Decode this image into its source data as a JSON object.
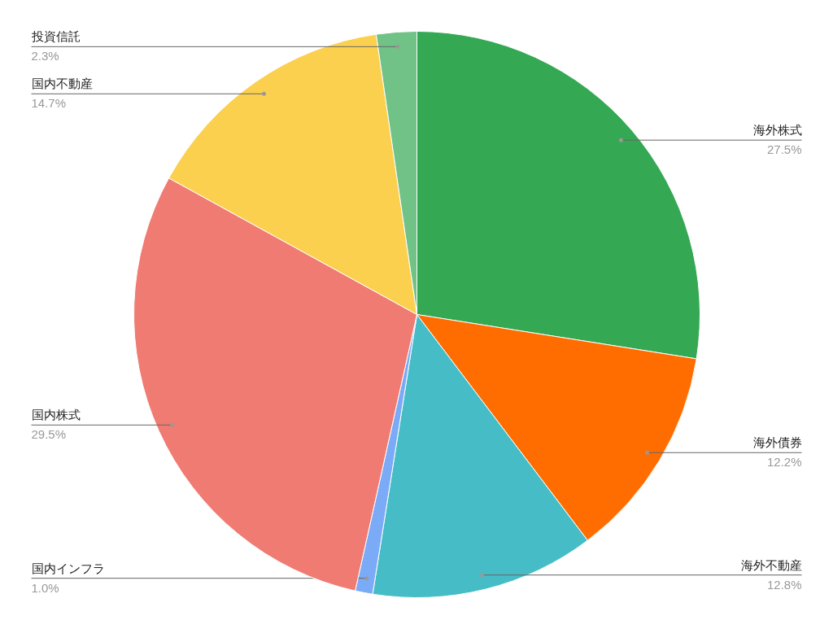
{
  "chart_data": {
    "type": "pie",
    "categories": [
      "海外株式",
      "海外債券",
      "海外不動産",
      "国内インフラ",
      "国内株式",
      "国内不動産",
      "投資信託"
    ],
    "values": [
      27.5,
      12.2,
      12.8,
      1.0,
      29.5,
      14.7,
      2.3
    ],
    "colors": [
      "#34a853",
      "#ff6d01",
      "#46bdc6",
      "#7baaf7",
      "#f07b72",
      "#fcd04f",
      "#71c287"
    ],
    "value_labels": [
      "27.5%",
      "12.2%",
      "12.8%",
      "1.0%",
      "29.5%",
      "14.7%",
      "2.3%"
    ],
    "legend": false
  }
}
